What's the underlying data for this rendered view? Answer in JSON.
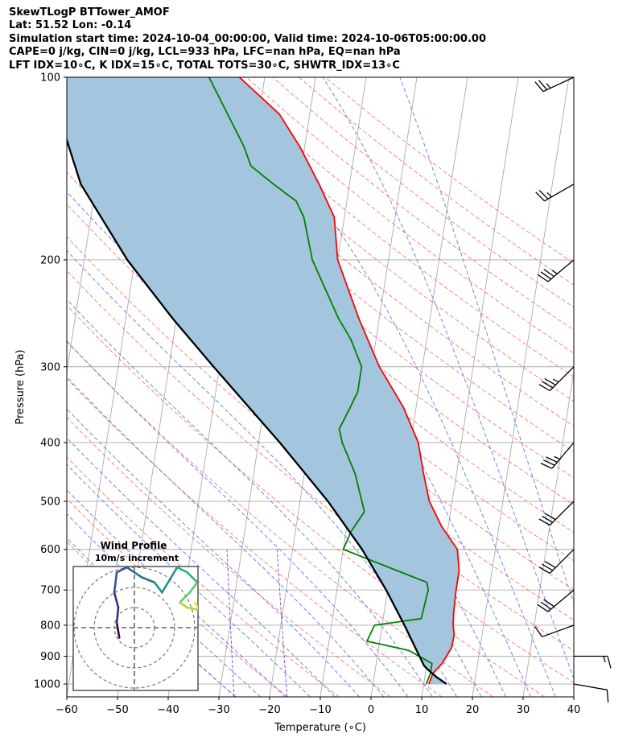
{
  "header": {
    "line1": "SkewTLogP BTTower_AMOF",
    "line2": "Lat: 51.52   Lon: -0.14",
    "line3": "Simulation start time: 2024-10-04_00:00:00, Valid time: 2024-10-06T05:00:00.00",
    "line4": "CAPE=0 j/kg, CIN=0 j/kg, LCL=933 hPa, LFC=nan hPa, EQ=nan hPa",
    "line5": "LFT IDX=10∘C, K IDX=15∘C, TOTAL TOTS=30∘C, SHWTR_IDX=13∘C"
  },
  "chart_data": {
    "type": "line",
    "subtype": "skew-T log-p diagram",
    "xlabel": "Temperature (∘C)",
    "ylabel": "Pressure (hPa)",
    "x_ticks": [
      -60,
      -50,
      -40,
      -30,
      -20,
      -10,
      0,
      10,
      20,
      30,
      40
    ],
    "y_ticks": [
      100,
      200,
      300,
      400,
      500,
      600,
      700,
      800,
      900,
      1000
    ],
    "xlim": [
      -60,
      40
    ],
    "ylim": [
      1050,
      100
    ],
    "y_scale": "log",
    "grid": true,
    "colors": {
      "temperature": "#ff0000",
      "dewpoint": "#008000",
      "parcel": "#000000",
      "shade": "#a3c5de",
      "dry_adiabat": "#ff6b6b",
      "moist_adiabat": "#5a6cf5",
      "mixing_ratio": "#9b51c9",
      "isotherm": "#aaaaaa"
    },
    "series": [
      {
        "key": "temperature",
        "pressure": [
          1000,
          960,
          925,
          870,
          830,
          800,
          760,
          700,
          650,
          600,
          550,
          500,
          450,
          400,
          350,
          300,
          250,
          200,
          170,
          150,
          130,
          115,
          100
        ],
        "values": [
          11,
          11.5,
          13,
          14.4,
          14.5,
          14,
          13.7,
          13.5,
          13.5,
          12.5,
          8.7,
          5.5,
          3.5,
          1.5,
          -2.5,
          -8.5,
          -14,
          -20,
          -22,
          -26,
          -31,
          -36,
          -45
        ]
      },
      {
        "key": "dewpoint",
        "pressure": [
          1000,
          960,
          925,
          880,
          850,
          800,
          780,
          700,
          680,
          600,
          560,
          520,
          450,
          400,
          380,
          350,
          330,
          300,
          270,
          250,
          200,
          170,
          160,
          150,
          140,
          130,
          100
        ],
        "values": [
          10.5,
          11,
          11,
          6,
          -2.5,
          -1.5,
          7.5,
          8,
          7.5,
          -10,
          -9,
          -7,
          -10,
          -13.5,
          -14.5,
          -13,
          -12,
          -12,
          -15,
          -18,
          -25,
          -28,
          -30,
          -35,
          -40,
          -42,
          -51
        ]
      },
      {
        "key": "parcel",
        "pressure": [
          1000,
          975,
          950,
          933,
          900,
          850,
          800,
          700,
          600,
          500,
          400,
          300,
          250,
          200,
          150,
          100
        ],
        "values": [
          14.5,
          12.4,
          10.6,
          9.5,
          8.3,
          6.4,
          4.4,
          -0.3,
          -6.3,
          -14.5,
          -25.8,
          -41.2,
          -50.7,
          -61.5,
          -73,
          -83
        ]
      }
    ],
    "wind_barbs": [
      {
        "pressure": 1000,
        "speed_kt": 10,
        "direction_deg": 100
      },
      {
        "pressure": 900,
        "speed_kt": 15,
        "direction_deg": 90
      },
      {
        "pressure": 800,
        "speed_kt": 10,
        "direction_deg": 250
      },
      {
        "pressure": 700,
        "speed_kt": 30,
        "direction_deg": 230
      },
      {
        "pressure": 600,
        "speed_kt": 30,
        "direction_deg": 225
      },
      {
        "pressure": 500,
        "speed_kt": 30,
        "direction_deg": 225
      },
      {
        "pressure": 400,
        "speed_kt": 35,
        "direction_deg": 220
      },
      {
        "pressure": 300,
        "speed_kt": 35,
        "direction_deg": 225
      },
      {
        "pressure": 200,
        "speed_kt": 35,
        "direction_deg": 230
      },
      {
        "pressure": 150,
        "speed_kt": 25,
        "direction_deg": 240
      },
      {
        "pressure": 100,
        "speed_kt": 25,
        "direction_deg": 245
      }
    ],
    "inset": {
      "title": "Wind Profile",
      "subtitle": "10m/s increment",
      "rings_ms": [
        10,
        20,
        30
      ],
      "hodograph_uv": [
        [
          -3,
          -2
        ],
        [
          -3.5,
          1
        ],
        [
          -3.2,
          4
        ],
        [
          -4,
          7
        ],
        [
          -3.5,
          11
        ],
        [
          -1.5,
          12
        ],
        [
          1.5,
          10
        ],
        [
          4,
          9
        ],
        [
          5.5,
          7
        ],
        [
          8.5,
          12
        ],
        [
          10.5,
          11
        ],
        [
          12.5,
          9
        ],
        [
          11,
          7
        ],
        [
          9,
          5
        ],
        [
          10.5,
          4
        ],
        [
          13,
          3.5
        ],
        [
          12,
          5
        ]
      ]
    }
  }
}
